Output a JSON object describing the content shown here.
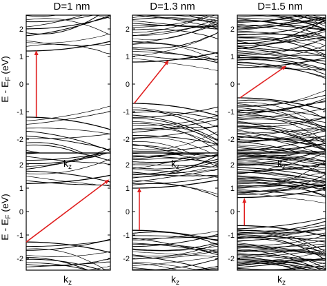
{
  "chart_data": {
    "type": "line",
    "columns": [
      "D=1 nm",
      "D=1.3 nm",
      "D=1.5 nm"
    ],
    "xlabel": "k",
    "xlabel_sub": "z",
    "ylabel_main": "E - E",
    "ylabel_sub": "F",
    "ylabel_unit": " (eV)",
    "ylim": [
      -2.5,
      2.5
    ],
    "yticks": [
      -2,
      -1,
      0,
      1,
      2
    ],
    "grid": false,
    "arrow_color": "#e02020",
    "panels": [
      {
        "row": 0,
        "col": 0,
        "cbm": 1.2,
        "vbm": -1.2,
        "density": 12,
        "arrow": {
          "from": [
            0.12,
            -1.2
          ],
          "to": [
            0.12,
            1.2
          ]
        }
      },
      {
        "row": 0,
        "col": 1,
        "cbm": 0.8,
        "vbm": -0.7,
        "density": 24,
        "arrow": {
          "from": [
            0.02,
            -0.7
          ],
          "to": [
            0.42,
            0.85
          ]
        }
      },
      {
        "row": 0,
        "col": 2,
        "cbm": 0.6,
        "vbm": -0.5,
        "density": 46,
        "arrow": {
          "from": [
            0.03,
            -0.5
          ],
          "to": [
            0.55,
            0.65
          ]
        }
      },
      {
        "row": 1,
        "col": 0,
        "cbm": 1.2,
        "vbm": -1.3,
        "density": 12,
        "arrow": {
          "from": [
            0.0,
            -1.3
          ],
          "to": [
            0.98,
            1.35
          ]
        }
      },
      {
        "row": 1,
        "col": 1,
        "cbm": 1.0,
        "vbm": -0.8,
        "density": 24,
        "arrow": {
          "from": [
            0.08,
            -0.8
          ],
          "to": [
            0.08,
            1.0
          ]
        }
      },
      {
        "row": 1,
        "col": 2,
        "cbm": 0.6,
        "vbm": -0.6,
        "density": 46,
        "arrow": {
          "from": [
            0.08,
            -0.6
          ],
          "to": [
            0.08,
            0.55
          ]
        }
      }
    ]
  }
}
